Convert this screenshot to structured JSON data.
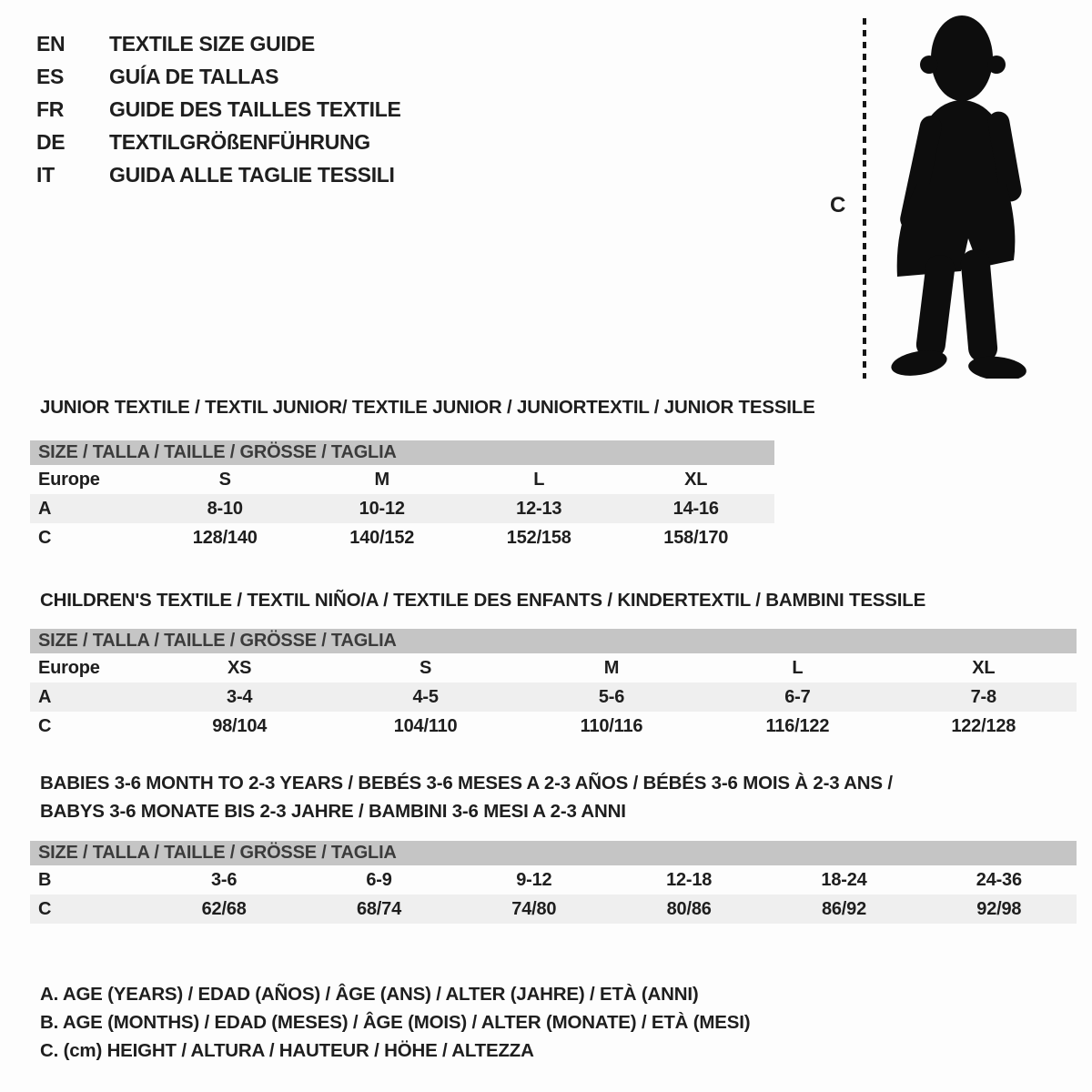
{
  "colors": {
    "table_header_bar": "#c5c5c5",
    "row_stripe": "#efefef",
    "text": "#1e1e1e",
    "silhouette": "#0d0d0d"
  },
  "header": {
    "languages": [
      {
        "code": "EN",
        "label": "TEXTILE SIZE GUIDE"
      },
      {
        "code": "ES",
        "label": "GUÍA DE TALLAS"
      },
      {
        "code": "FR",
        "label": "GUIDE DES TAILLES TEXTILE"
      },
      {
        "code": "DE",
        "label": "TEXTILGRÖßENFÜHRUNG"
      },
      {
        "code": "IT",
        "label": "GUIDA ALLE TAGLIE TESSILI"
      }
    ]
  },
  "figure": {
    "measure_label": "C"
  },
  "sections": [
    {
      "title_lines": [
        "JUNIOR TEXTILE / TEXTIL JUNIOR/ TEXTILE JUNIOR / JUNIORTEXTIL / JUNIOR TESSILE"
      ],
      "size_header": "SIZE / TALLA / TAILLE / GRÖSSE / TAGLIA",
      "rows": [
        {
          "label": "Europe",
          "values": [
            "S",
            "M",
            "L",
            "XL"
          ],
          "shaded": false
        },
        {
          "label": "A",
          "values": [
            "8-10",
            "10-12",
            "12-13",
            "14-16"
          ],
          "shaded": true
        },
        {
          "label": "C",
          "values": [
            "128/140",
            "140/152",
            "152/158",
            "158/170"
          ],
          "shaded": false
        }
      ]
    },
    {
      "title_lines": [
        "CHILDREN'S TEXTILE / TEXTIL NIÑO/A / TEXTILE DES ENFANTS / KINDERTEXTIL / BAMBINI TESSILE"
      ],
      "size_header": "SIZE / TALLA / TAILLE / GRÖSSE / TAGLIA",
      "rows": [
        {
          "label": "Europe",
          "values": [
            "XS",
            "S",
            "M",
            "L",
            "XL"
          ],
          "shaded": false
        },
        {
          "label": "A",
          "values": [
            "3-4",
            "4-5",
            "5-6",
            "6-7",
            "7-8"
          ],
          "shaded": true
        },
        {
          "label": "C",
          "values": [
            "98/104",
            "104/110",
            "110/116",
            "116/122",
            "122/128"
          ],
          "shaded": false
        }
      ]
    },
    {
      "title_lines": [
        "BABIES 3-6 MONTH TO 2-3 YEARS / BEBÉS 3-6 MESES A 2-3 AÑOS / BÉBÉS 3-6 MOIS À 2-3 ANS /",
        "BABYS 3-6 MONATE BIS 2-3 JAHRE / BAMBINI 3-6 MESI A 2-3 ANNI"
      ],
      "size_header": "SIZE / TALLA / TAILLE / GRÖSSE / TAGLIA",
      "rows": [
        {
          "label": "B",
          "values": [
            "3-6",
            "6-9",
            "9-12",
            "12-18",
            "18-24",
            "24-36"
          ],
          "shaded": false
        },
        {
          "label": "C",
          "values": [
            "62/68",
            "68/74",
            "74/80",
            "80/86",
            "86/92",
            "92/98"
          ],
          "shaded": true
        }
      ]
    }
  ],
  "legend": {
    "notes": [
      "A. AGE (YEARS) / EDAD (AÑOS) / ÂGE (ANS) / ALTER (JAHRE) / ETÀ (ANNI)",
      "B. AGE (MONTHS) / EDAD (MESES) / ÂGE (MOIS) / ALTER (MONATE) / ETÀ (MESI)",
      "C. (cm) HEIGHT / ALTURA / HAUTEUR / HÖHE / ALTEZZA"
    ]
  }
}
